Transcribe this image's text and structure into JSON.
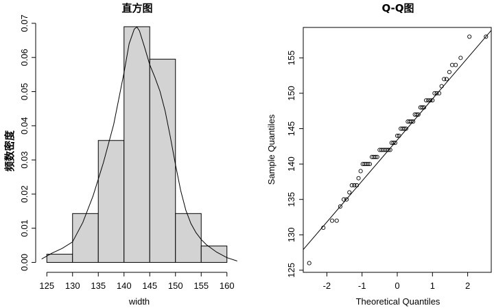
{
  "chart_data": [
    {
      "type": "bar",
      "subtype": "histogram-with-density",
      "title": "直方图",
      "xlabel": "width",
      "ylabel": "频数密度",
      "bins": [
        [
          125,
          130
        ],
        [
          130,
          135
        ],
        [
          135,
          140
        ],
        [
          140,
          145
        ],
        [
          145,
          150
        ],
        [
          150,
          155
        ],
        [
          155,
          160
        ]
      ],
      "values": [
        0.0024,
        0.0143,
        0.0357,
        0.069,
        0.0595,
        0.0143,
        0.0048
      ],
      "density_curve": {
        "x": [
          124,
          126,
          128,
          130,
          132,
          134,
          136,
          138,
          140,
          141,
          142,
          142.5,
          143,
          144,
          145,
          146,
          147,
          148,
          149,
          150,
          151,
          152,
          153,
          154,
          155,
          156,
          158,
          160,
          162
        ],
        "y": [
          0.001,
          0.0027,
          0.0041,
          0.006,
          0.0117,
          0.0195,
          0.0292,
          0.0404,
          0.0555,
          0.064,
          0.0683,
          0.0689,
          0.0678,
          0.063,
          0.0579,
          0.0542,
          0.0501,
          0.0443,
          0.0368,
          0.0287,
          0.0211,
          0.0153,
          0.0114,
          0.0087,
          0.0067,
          0.0052,
          0.003,
          0.0014,
          0.0004
        ]
      },
      "xticks": [
        "125",
        "130",
        "135",
        "140",
        "145",
        "150",
        "155",
        "160"
      ],
      "xtick_values": [
        125,
        130,
        135,
        140,
        145,
        150,
        155,
        160
      ],
      "yticks": [
        "0.00",
        "0.01",
        "0.02",
        "0.03",
        "0.04",
        "0.05",
        "0.06",
        "0.07"
      ],
      "ytick_values": [
        0,
        0.01,
        0.02,
        0.03,
        0.04,
        0.05,
        0.06,
        0.07
      ],
      "xlim": [
        123.9,
        161.9
      ],
      "ylim": [
        -0.0015,
        0.0718
      ],
      "grid": false
    },
    {
      "type": "scatter",
      "subtype": "qq-plot",
      "title": "Q-Q图",
      "xlabel": "Theoretical Quantiles",
      "ylabel": "Sample Quantiles",
      "points": [
        [
          -2.5,
          126
        ],
        [
          -2.1,
          131
        ],
        [
          -1.85,
          132
        ],
        [
          -1.72,
          132
        ],
        [
          -1.62,
          134
        ],
        [
          -1.52,
          135
        ],
        [
          -1.44,
          135
        ],
        [
          -1.36,
          136
        ],
        [
          -1.29,
          137
        ],
        [
          -1.22,
          137
        ],
        [
          -1.15,
          137
        ],
        [
          -1.1,
          138
        ],
        [
          -1.04,
          139
        ],
        [
          -0.98,
          140
        ],
        [
          -0.93,
          140
        ],
        [
          -0.88,
          140
        ],
        [
          -0.83,
          140
        ],
        [
          -0.78,
          140
        ],
        [
          -0.72,
          141
        ],
        [
          -0.67,
          141
        ],
        [
          -0.62,
          141
        ],
        [
          -0.57,
          141
        ],
        [
          -0.5,
          142
        ],
        [
          -0.45,
          142
        ],
        [
          -0.4,
          142
        ],
        [
          -0.35,
          142
        ],
        [
          -0.3,
          142
        ],
        [
          -0.25,
          142
        ],
        [
          -0.2,
          142
        ],
        [
          -0.16,
          143
        ],
        [
          -0.11,
          143
        ],
        [
          -0.06,
          143
        ],
        [
          0.0,
          144
        ],
        [
          0.05,
          144
        ],
        [
          0.1,
          145
        ],
        [
          0.15,
          145
        ],
        [
          0.2,
          145
        ],
        [
          0.25,
          145
        ],
        [
          0.3,
          146
        ],
        [
          0.35,
          146
        ],
        [
          0.4,
          146
        ],
        [
          0.45,
          146
        ],
        [
          0.5,
          147
        ],
        [
          0.55,
          147
        ],
        [
          0.6,
          147
        ],
        [
          0.66,
          148
        ],
        [
          0.71,
          148
        ],
        [
          0.76,
          148
        ],
        [
          0.82,
          149
        ],
        [
          0.88,
          149
        ],
        [
          0.94,
          149
        ],
        [
          1.0,
          149
        ],
        [
          1.06,
          150
        ],
        [
          1.12,
          150
        ],
        [
          1.19,
          150
        ],
        [
          1.26,
          151
        ],
        [
          1.33,
          152
        ],
        [
          1.4,
          152
        ],
        [
          1.48,
          153
        ],
        [
          1.56,
          154
        ],
        [
          1.66,
          154
        ],
        [
          1.8,
          155
        ],
        [
          2.05,
          158
        ],
        [
          2.52,
          158
        ]
      ],
      "reference_line": {
        "intercept": 143.4,
        "slope": 5.8
      },
      "xticks": [
        "-2",
        "-1",
        "0",
        "1",
        "2"
      ],
      "xtick_values": [
        -2,
        -1,
        0,
        1,
        2
      ],
      "yticks": [
        "125",
        "130",
        "135",
        "140",
        "145",
        "150",
        "155"
      ],
      "ytick_values": [
        125,
        130,
        135,
        140,
        145,
        150,
        155
      ],
      "xlim": [
        -2.67,
        2.67
      ],
      "ylim": [
        124.7,
        159.3
      ],
      "grid": false
    }
  ]
}
